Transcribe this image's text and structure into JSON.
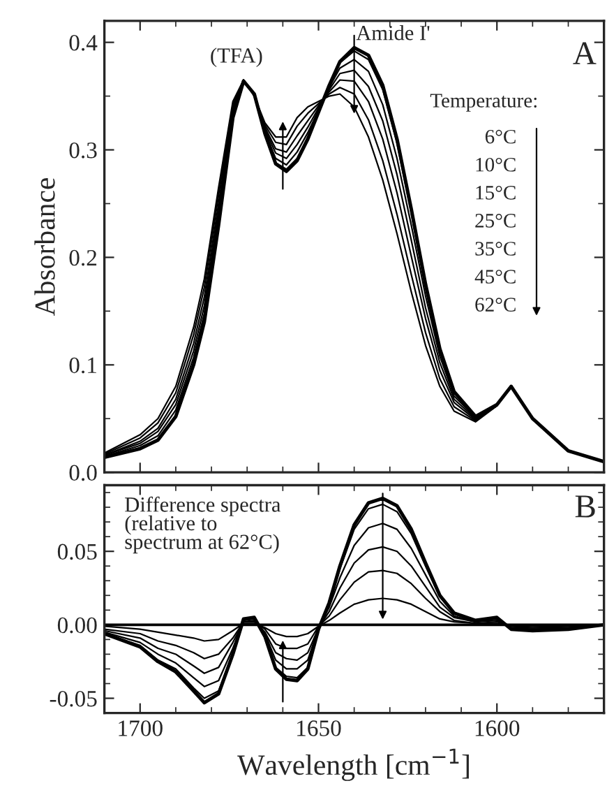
{
  "chart_data": [
    {
      "type": "line",
      "ylabel": "Absorbance",
      "xlim": [
        1710,
        1570
      ],
      "ylim": [
        0,
        0.42
      ],
      "xticks": [
        1700,
        1650,
        1600
      ],
      "yticks": [
        {
          "value": 0,
          "label": "0.0"
        },
        {
          "value": 0.1,
          "label": "0.1"
        },
        {
          "value": 0.2,
          "label": "0.2"
        },
        {
          "value": 0.3,
          "label": "0.3"
        },
        {
          "value": 0.4,
          "label": "0.4"
        }
      ],
      "tick_labels": "y",
      "grid": false,
      "legend": false,
      "marker": "none",
      "line_style": "solid",
      "x": [
        1710,
        1700,
        1695,
        1690,
        1685,
        1682,
        1678,
        1674,
        1671,
        1668,
        1665,
        1662,
        1659,
        1656,
        1653,
        1650,
        1647,
        1644,
        1640,
        1636,
        1632,
        1628,
        1624,
        1620,
        1616,
        1612,
        1606,
        1600,
        1596,
        1590,
        1580,
        1570
      ],
      "series": [
        {
          "color": "#000000",
          "values": [
            0.014,
            0.022,
            0.03,
            0.052,
            0.1,
            0.14,
            0.23,
            0.33,
            0.364,
            0.352,
            0.315,
            0.287,
            0.28,
            0.29,
            0.31,
            0.335,
            0.36,
            0.382,
            0.395,
            0.388,
            0.36,
            0.31,
            0.245,
            0.175,
            0.115,
            0.075,
            0.052,
            0.063,
            0.08,
            0.05,
            0.02,
            0.01
          ]
        },
        {
          "color": "#000000",
          "values": [
            0.014,
            0.023,
            0.031,
            0.053,
            0.102,
            0.142,
            0.232,
            0.331,
            0.364,
            0.352,
            0.316,
            0.288,
            0.282,
            0.292,
            0.312,
            0.336,
            0.36,
            0.381,
            0.392,
            0.384,
            0.356,
            0.306,
            0.241,
            0.172,
            0.113,
            0.074,
            0.052,
            0.063,
            0.08,
            0.05,
            0.02,
            0.01
          ]
        },
        {
          "color": "#000000",
          "values": [
            0.015,
            0.025,
            0.034,
            0.058,
            0.107,
            0.148,
            0.237,
            0.333,
            0.364,
            0.352,
            0.317,
            0.292,
            0.286,
            0.298,
            0.316,
            0.337,
            0.358,
            0.376,
            0.384,
            0.373,
            0.342,
            0.292,
            0.23,
            0.164,
            0.108,
            0.071,
            0.051,
            0.063,
            0.08,
            0.05,
            0.02,
            0.01
          ]
        },
        {
          "color": "#000000",
          "values": [
            0.016,
            0.027,
            0.038,
            0.063,
            0.113,
            0.155,
            0.243,
            0.336,
            0.364,
            0.351,
            0.319,
            0.297,
            0.292,
            0.305,
            0.321,
            0.339,
            0.356,
            0.371,
            0.374,
            0.359,
            0.327,
            0.277,
            0.216,
            0.153,
            0.102,
            0.068,
            0.05,
            0.063,
            0.08,
            0.05,
            0.02,
            0.01
          ]
        },
        {
          "color": "#000000",
          "values": [
            0.016,
            0.029,
            0.041,
            0.068,
            0.12,
            0.163,
            0.25,
            0.339,
            0.365,
            0.351,
            0.321,
            0.301,
            0.298,
            0.313,
            0.327,
            0.341,
            0.354,
            0.365,
            0.364,
            0.345,
            0.31,
            0.26,
            0.201,
            0.143,
            0.095,
            0.065,
            0.049,
            0.062,
            0.08,
            0.05,
            0.02,
            0.01
          ]
        },
        {
          "color": "#000000",
          "values": [
            0.017,
            0.032,
            0.046,
            0.074,
            0.128,
            0.172,
            0.258,
            0.342,
            0.365,
            0.35,
            0.323,
            0.307,
            0.305,
            0.322,
            0.334,
            0.343,
            0.352,
            0.358,
            0.352,
            0.328,
            0.29,
            0.24,
            0.184,
            0.13,
            0.087,
            0.061,
            0.048,
            0.062,
            0.08,
            0.05,
            0.02,
            0.01
          ]
        },
        {
          "color": "#000000",
          "values": [
            0.018,
            0.035,
            0.05,
            0.08,
            0.135,
            0.18,
            0.265,
            0.345,
            0.365,
            0.35,
            0.325,
            0.312,
            0.312,
            0.33,
            0.34,
            0.345,
            0.35,
            0.352,
            0.34,
            0.312,
            0.272,
            0.222,
            0.168,
            0.118,
            0.08,
            0.057,
            0.047,
            0.062,
            0.08,
            0.05,
            0.02,
            0.01
          ]
        }
      ],
      "annotations": [
        {
          "text": "(TFA)",
          "x": 1673,
          "y": 0.365
        },
        {
          "text": "Amide I'",
          "x": 1641,
          "y": 0.395
        },
        "A",
        "Temperature:",
        "6°C",
        "10°C",
        "15°C",
        "25°C",
        "35°C",
        "45°C",
        "62°C"
      ]
    },
    {
      "type": "line",
      "xlabel": "Wavelength [cm$^{−1}$]",
      "xlim": [
        1710,
        1570
      ],
      "ylim": [
        -0.06,
        0.095
      ],
      "xticks": [
        1700,
        1650,
        1600
      ],
      "yticks": [
        {
          "value": -0.05,
          "label": "-0.05"
        },
        {
          "value": 0,
          "label": "0.00"
        },
        {
          "value": 0.05,
          "label": "0.05"
        }
      ],
      "grid": false,
      "legend": false,
      "marker": "none",
      "line_style": "solid",
      "x": [
        1710,
        1700,
        1695,
        1690,
        1685,
        1682,
        1678,
        1674,
        1671,
        1668,
        1665,
        1662,
        1659,
        1656,
        1653,
        1650,
        1647,
        1644,
        1640,
        1636,
        1632,
        1628,
        1624,
        1620,
        1616,
        1612,
        1606,
        1600,
        1596,
        1590,
        1580,
        1570
      ],
      "series": [
        {
          "color": "#000000",
          "values": [
            -0.006,
            -0.015,
            -0.025,
            -0.032,
            -0.045,
            -0.053,
            -0.047,
            -0.02,
            0.004,
            0.005,
            -0.008,
            -0.03,
            -0.037,
            -0.038,
            -0.03,
            -0.003,
            0.015,
            0.04,
            0.068,
            0.083,
            0.086,
            0.081,
            0.065,
            0.042,
            0.02,
            0.008,
            0.003,
            0.005,
            -0.003,
            -0.004,
            -0.003,
            0
          ]
        },
        {
          "color": "#000000",
          "values": [
            -0.006,
            -0.014,
            -0.024,
            -0.03,
            -0.043,
            -0.05,
            -0.045,
            -0.019,
            0.004,
            0.005,
            -0.008,
            -0.029,
            -0.035,
            -0.036,
            -0.029,
            -0.003,
            0.014,
            0.038,
            0.065,
            0.079,
            0.082,
            0.077,
            0.062,
            0.04,
            0.019,
            0.008,
            0.003,
            0.005,
            -0.003,
            -0.004,
            -0.003,
            0
          ]
        },
        {
          "color": "#000000",
          "values": [
            -0.005,
            -0.012,
            -0.02,
            -0.026,
            -0.036,
            -0.042,
            -0.038,
            -0.016,
            0.003,
            0.004,
            -0.006,
            -0.024,
            -0.03,
            -0.03,
            -0.024,
            -0.002,
            0.012,
            0.032,
            0.054,
            0.066,
            0.069,
            0.065,
            0.052,
            0.034,
            0.016,
            0.006,
            0.002,
            0.004,
            -0.002,
            -0.003,
            -0.002,
            0
          ]
        },
        {
          "color": "#000000",
          "values": [
            -0.004,
            -0.009,
            -0.016,
            -0.02,
            -0.028,
            -0.033,
            -0.029,
            -0.012,
            0.002,
            0.003,
            -0.005,
            -0.019,
            -0.023,
            -0.024,
            -0.019,
            -0.002,
            0.009,
            0.025,
            0.042,
            0.051,
            0.053,
            0.05,
            0.04,
            0.026,
            0.012,
            0.005,
            0.002,
            0.003,
            -0.002,
            -0.002,
            -0.002,
            0
          ]
        },
        {
          "color": "#000000",
          "values": [
            -0.003,
            -0.006,
            -0.011,
            -0.014,
            -0.019,
            -0.023,
            -0.02,
            -0.009,
            0.002,
            0.002,
            -0.003,
            -0.013,
            -0.016,
            -0.016,
            -0.013,
            -0.001,
            0.006,
            0.017,
            0.029,
            0.036,
            0.037,
            0.035,
            0.028,
            0.018,
            0.009,
            0.003,
            0.001,
            0.002,
            -0.001,
            -0.002,
            -0.001,
            0
          ]
        },
        {
          "color": "#000000",
          "values": [
            -0.001,
            -0.003,
            -0.005,
            -0.007,
            -0.009,
            -0.011,
            -0.01,
            -0.004,
            0.001,
            0.001,
            -0.002,
            -0.006,
            -0.008,
            -0.008,
            -0.006,
            -0.001,
            0.003,
            0.008,
            0.014,
            0.017,
            0.018,
            0.017,
            0.014,
            0.009,
            0.004,
            0.002,
            0.001,
            0.001,
            -0.001,
            -0.001,
            -0.001,
            0
          ]
        }
      ],
      "ref_lines": [
        {
          "axis": "y",
          "value": 0,
          "color": "#000000",
          "line_style": "solid"
        }
      ],
      "annotations": [
        "Difference spectra\n(relative to\nspectrum at 62°C)",
        "B"
      ]
    }
  ]
}
